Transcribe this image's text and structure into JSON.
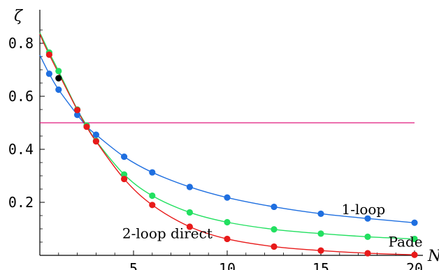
{
  "chart_data": {
    "type": "line",
    "xlabel": "N",
    "ylabel": "ζ",
    "xlim": [
      0,
      20
    ],
    "ylim": [
      0,
      0.9
    ],
    "x_ticks": [
      5,
      10,
      15,
      20
    ],
    "y_ticks": [
      0.2,
      0.4,
      0.6,
      0.8
    ],
    "x_tick_labels": [
      "5",
      "10",
      "15",
      "20"
    ],
    "y_tick_labels": [
      "0.2",
      "0.4",
      "0.6",
      "0.8"
    ],
    "grid": false,
    "reference_line": {
      "y": 0.5,
      "color": "#e0197d"
    },
    "series": [
      {
        "name": "1-loop",
        "color": "#1f6fe0",
        "points": [
          [
            0.5,
            0.685
          ],
          [
            1,
            0.625
          ],
          [
            2,
            0.53
          ],
          [
            2.5,
            0.487
          ],
          [
            3,
            0.455
          ],
          [
            4.5,
            0.372
          ],
          [
            6,
            0.313
          ],
          [
            8,
            0.258
          ],
          [
            10,
            0.218
          ],
          [
            12.5,
            0.183
          ],
          [
            15,
            0.157
          ],
          [
            17.5,
            0.139
          ],
          [
            20,
            0.123
          ]
        ]
      },
      {
        "name": "Pade",
        "color": "#22e060",
        "points": [
          [
            0.5,
            0.765
          ],
          [
            1,
            0.695
          ],
          [
            2,
            0.55
          ],
          [
            2.5,
            0.49
          ],
          [
            3,
            0.432
          ],
          [
            4.5,
            0.305
          ],
          [
            6,
            0.225
          ],
          [
            8,
            0.162
          ],
          [
            10,
            0.125
          ],
          [
            12.5,
            0.098
          ],
          [
            15,
            0.082
          ],
          [
            17.5,
            0.07
          ],
          [
            20,
            0.062
          ]
        ]
      },
      {
        "name": "2-loop direct",
        "color": "#e81a1a",
        "points": [
          [
            0.5,
            0.757
          ],
          [
            2,
            0.548
          ],
          [
            2.5,
            0.485
          ],
          [
            3,
            0.43
          ],
          [
            4.5,
            0.288
          ],
          [
            6,
            0.19
          ],
          [
            8,
            0.108
          ],
          [
            10,
            0.062
          ],
          [
            12.5,
            0.033
          ],
          [
            15,
            0.018
          ],
          [
            17.5,
            0.008
          ],
          [
            20,
            0.002
          ]
        ]
      }
    ],
    "extra_points": [
      {
        "x": 1,
        "y": 0.668,
        "color": "#000000"
      }
    ],
    "annotations": [
      {
        "text": "1-loop",
        "x": 16.1,
        "y": 0.155
      },
      {
        "text": "Pade",
        "x": 18.6,
        "y": 0.033
      },
      {
        "text": "2-loop direct",
        "x": 4.4,
        "y": 0.065
      }
    ]
  }
}
